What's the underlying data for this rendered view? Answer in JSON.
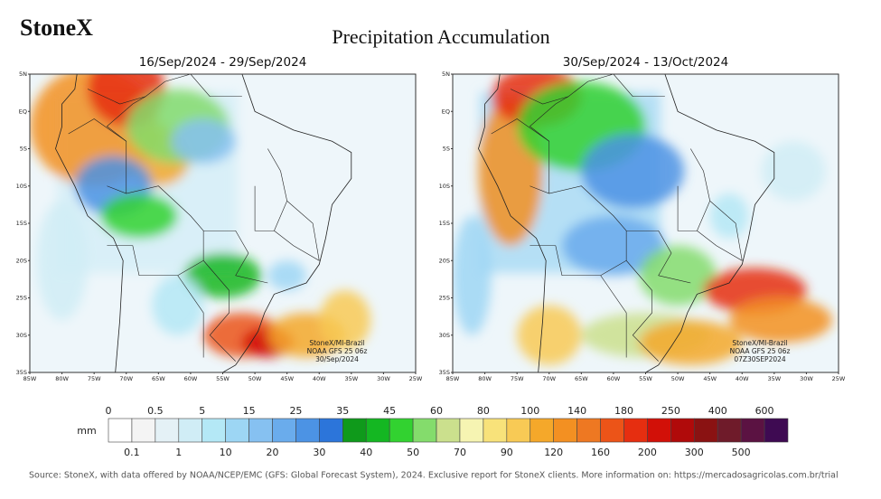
{
  "header": {
    "logo": "StoneX",
    "title": "Precipitation Accumulation"
  },
  "panels": [
    {
      "title": "16/Sep/2024 - 29/Sep/2024",
      "lat_labels": [
        "5N",
        "EQ",
        "5S",
        "10S",
        "15S",
        "20S",
        "25S",
        "30S",
        "35S"
      ],
      "lon_labels": [
        "85W",
        "80W",
        "75W",
        "70W",
        "65W",
        "60W",
        "55W",
        "50W",
        "45W",
        "40W",
        "35W",
        "30W",
        "25W"
      ],
      "watermark": [
        "StoneX/MI-Brazil",
        "NOAA GFS 25 06z",
        "30/Sep/2024"
      ]
    },
    {
      "title": "30/Sep/2024 - 13/Oct/2024",
      "lat_labels": [
        "5N",
        "EQ",
        "5S",
        "10S",
        "15S",
        "20S",
        "25S",
        "30S",
        "35S"
      ],
      "lon_labels": [
        "85W",
        "80W",
        "75W",
        "70W",
        "65W",
        "60W",
        "55W",
        "50W",
        "45W",
        "40W",
        "35W",
        "30W",
        "25W"
      ],
      "watermark": [
        "StoneX/MI-Brazil",
        "NOAA GFS 25 06z",
        "07Z30SEP2024"
      ]
    }
  ],
  "colorbar": {
    "unit": "mm",
    "top_labels": [
      "0",
      "0.5",
      "5",
      "15",
      "25",
      "35",
      "45",
      "60",
      "80",
      "100",
      "140",
      "180",
      "250",
      "400",
      "600"
    ],
    "bottom_labels": [
      "0.1",
      "1",
      "10",
      "20",
      "30",
      "40",
      "50",
      "70",
      "90",
      "120",
      "160",
      "200",
      "300",
      "500"
    ],
    "colors": [
      "#ffffff",
      "#f4f4f4",
      "#e4f1f6",
      "#d0edf6",
      "#b4e8f6",
      "#9dd6f4",
      "#86c1f1",
      "#6aacec",
      "#4c93e4",
      "#2c75da",
      "#0f9a1b",
      "#14b722",
      "#32d230",
      "#84dc6c",
      "#cbe08d",
      "#f6f4b2",
      "#f8e27a",
      "#f8ca55",
      "#f5a82a",
      "#f39022",
      "#ee7822",
      "#ec5418",
      "#e62e10",
      "#d21008",
      "#b00a0a",
      "#8a1212",
      "#6f1b2a",
      "#5b1242",
      "#3e0a52"
    ]
  },
  "footer": {
    "source": "Source: StoneX, with data offered by NOAA/NCEP/EMC (GFS: Global Forecast System), 2024. Exclusive report for StoneX clients. More information on: https://mercadosagricolas.com.br/trial"
  }
}
